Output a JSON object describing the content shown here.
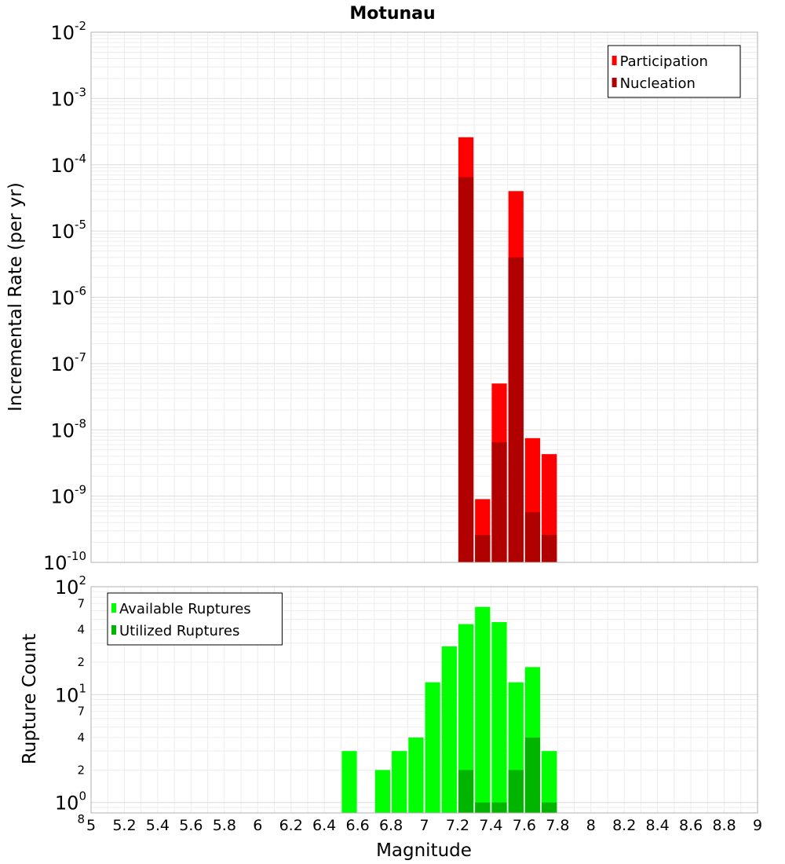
{
  "chart_data": [
    {
      "type": "bar",
      "title": "Motunau",
      "xlabel": "",
      "ylabel": "Incremental Rate (per yr)",
      "yscale": "log",
      "xlim": [
        5,
        9
      ],
      "ylim": [
        1e-10,
        0.01
      ],
      "y_ticks": [
        {
          "base": "10",
          "exp": "-2"
        },
        {
          "base": "10",
          "exp": "-3"
        },
        {
          "base": "10",
          "exp": "-4"
        },
        {
          "base": "10",
          "exp": "-5"
        },
        {
          "base": "10",
          "exp": "-6"
        },
        {
          "base": "10",
          "exp": "-7"
        },
        {
          "base": "10",
          "exp": "-8"
        },
        {
          "base": "10",
          "exp": "-9"
        },
        {
          "base": "10",
          "exp": "-10"
        }
      ],
      "grid": true,
      "legend": {
        "position": "top-right",
        "entries": [
          {
            "label": "Participation",
            "color": "#ff0000"
          },
          {
            "label": "Nucleation",
            "color": "#b00000"
          }
        ]
      },
      "series": [
        {
          "name": "Participation",
          "color": "#ff0000",
          "points": [
            {
              "x": 7.25,
              "y": 0.00026
            },
            {
              "x": 7.35,
              "y": 9e-10
            },
            {
              "x": 7.45,
              "y": 5e-08
            },
            {
              "x": 7.55,
              "y": 4e-05
            },
            {
              "x": 7.65,
              "y": 7.5e-09
            },
            {
              "x": 7.75,
              "y": 4.3e-09
            }
          ]
        },
        {
          "name": "Nucleation",
          "color": "#b00000",
          "points": [
            {
              "x": 7.25,
              "y": 6.5e-05
            },
            {
              "x": 7.35,
              "y": 2.6e-10
            },
            {
              "x": 7.45,
              "y": 6.5e-09
            },
            {
              "x": 7.55,
              "y": 4e-06
            },
            {
              "x": 7.65,
              "y": 5.7e-10
            },
            {
              "x": 7.75,
              "y": 2.6e-10
            }
          ]
        }
      ]
    },
    {
      "type": "bar",
      "title": "",
      "xlabel": "Magnitude",
      "ylabel": "Rupture Count",
      "yscale": "log",
      "xlim": [
        5,
        9
      ],
      "ylim": [
        0.8,
        100
      ],
      "x_ticks": [
        "5",
        "5.2",
        "5.4",
        "5.6",
        "5.8",
        "6",
        "6.2",
        "6.4",
        "6.6",
        "6.8",
        "7",
        "7.2",
        "7.4",
        "7.6",
        "7.8",
        "8",
        "8.2",
        "8.4",
        "8.6",
        "8.8",
        "9"
      ],
      "y_ticks": [
        {
          "base": "10",
          "exp": "2"
        },
        {
          "base": "10",
          "exp": "1"
        },
        {
          "base": "10",
          "exp": "0"
        }
      ],
      "y_minor_labels": [
        {
          "value": 70,
          "label": "7"
        },
        {
          "value": 40,
          "label": "4"
        },
        {
          "value": 20,
          "label": "2"
        },
        {
          "value": 7,
          "label": "7"
        },
        {
          "value": 4,
          "label": "4"
        },
        {
          "value": 2,
          "label": "2"
        },
        {
          "value": 0.8,
          "label": "8"
        }
      ],
      "grid": true,
      "legend": {
        "position": "top-left",
        "entries": [
          {
            "label": "Available Ruptures",
            "color": "#00ff00"
          },
          {
            "label": "Utilized Ruptures",
            "color": "#00b400"
          }
        ]
      },
      "series": [
        {
          "name": "Available Ruptures",
          "color": "#00ff00",
          "points": [
            {
              "x": 6.55,
              "y": 3
            },
            {
              "x": 6.75,
              "y": 2
            },
            {
              "x": 6.85,
              "y": 3
            },
            {
              "x": 6.95,
              "y": 4
            },
            {
              "x": 7.05,
              "y": 13
            },
            {
              "x": 7.15,
              "y": 28
            },
            {
              "x": 7.25,
              "y": 45
            },
            {
              "x": 7.35,
              "y": 65
            },
            {
              "x": 7.45,
              "y": 47
            },
            {
              "x": 7.55,
              "y": 13
            },
            {
              "x": 7.65,
              "y": 18
            },
            {
              "x": 7.75,
              "y": 3
            }
          ]
        },
        {
          "name": "Utilized Ruptures",
          "color": "#00b400",
          "points": [
            {
              "x": 7.25,
              "y": 2
            },
            {
              "x": 7.35,
              "y": 1
            },
            {
              "x": 7.45,
              "y": 1
            },
            {
              "x": 7.55,
              "y": 2
            },
            {
              "x": 7.65,
              "y": 4
            },
            {
              "x": 7.75,
              "y": 1
            }
          ]
        }
      ]
    }
  ]
}
